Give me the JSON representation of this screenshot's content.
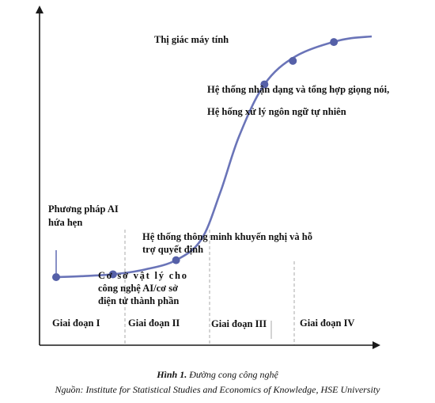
{
  "chart_data": {
    "type": "line",
    "title": "",
    "xlabel": "",
    "ylabel": "",
    "series": [
      {
        "curve": [
          [
            0,
            0
          ],
          [
            8,
            1
          ],
          [
            18,
            3
          ],
          [
            28,
            8
          ],
          [
            38,
            18
          ],
          [
            46,
            40
          ],
          [
            52,
            90
          ],
          [
            58,
            150
          ],
          [
            66,
            205
          ],
          [
            76,
            235
          ],
          [
            90,
            252
          ],
          [
            100,
            256
          ]
        ],
        "points": [
          {
            "x": 0,
            "y": 0
          },
          {
            "x": 18,
            "y": 3
          },
          {
            "x": 38,
            "y": 18
          },
          {
            "x": 66,
            "y": 205
          },
          {
            "x": 75,
            "y": 230
          },
          {
            "x": 88,
            "y": 250
          }
        ]
      }
    ],
    "phases": [
      "Giai đoạn I",
      "Giai đoạn II",
      "Giai đoạn III",
      "Giai đoạn IV"
    ],
    "annotations": {
      "vision": "Thị giác máy tính",
      "speech_1": "Hệ thống nhận dạng và tổng hợp giọng nói,",
      "speech_2": "Hệ hống xử lý ngôn ngữ tự nhiên",
      "promise_1": "Phương pháp AI",
      "promise_2": "hứa hẹn",
      "smart_1": "Hệ thống thông minh khuyến nghị và hỗ",
      "smart_2": "trợ quyết định",
      "infra_1": "Cơ sở vật lý cho",
      "infra_2": "công nghệ AI/cơ sở",
      "infra_3": "điện tử thành phần"
    },
    "colors": {
      "line": "#6a74b8",
      "marker": "#5560a8",
      "axis": "#1a1a1a",
      "divider": "#a8a8a8"
    }
  },
  "caption": {
    "figure_label": "Hình 1.",
    "figure_title": "Đường cong công nghệ",
    "source": "Nguồn: Institute for Statistical Studies and Economics of Knowledge, HSE University"
  }
}
